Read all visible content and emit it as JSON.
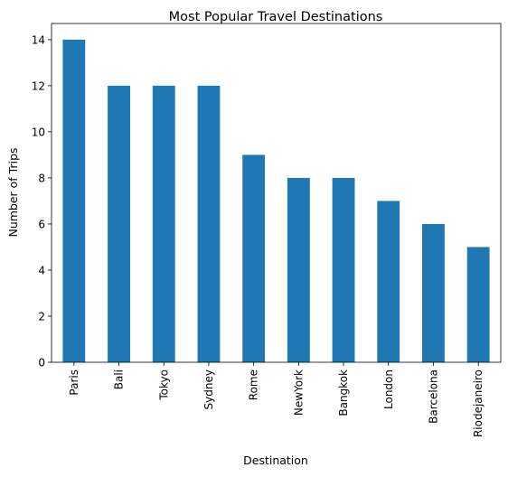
{
  "chart_data": {
    "type": "bar",
    "title": "Most Popular Travel Destinations",
    "xlabel": "Destination",
    "ylabel": "Number of Trips",
    "categories": [
      "Paris",
      "Bali",
      "Tokyo",
      "Sydney",
      "Rome",
      "NewYork",
      "Bangkok",
      "London",
      "Barcelona",
      "Riodejaneiro"
    ],
    "values": [
      14,
      12,
      12,
      12,
      9,
      8,
      8,
      7,
      6,
      5
    ],
    "ylim": [
      0,
      14.7
    ],
    "yticks": [
      0,
      2,
      4,
      6,
      8,
      10,
      12,
      14
    ],
    "grid": false,
    "bar_color": "#1f77b4"
  }
}
